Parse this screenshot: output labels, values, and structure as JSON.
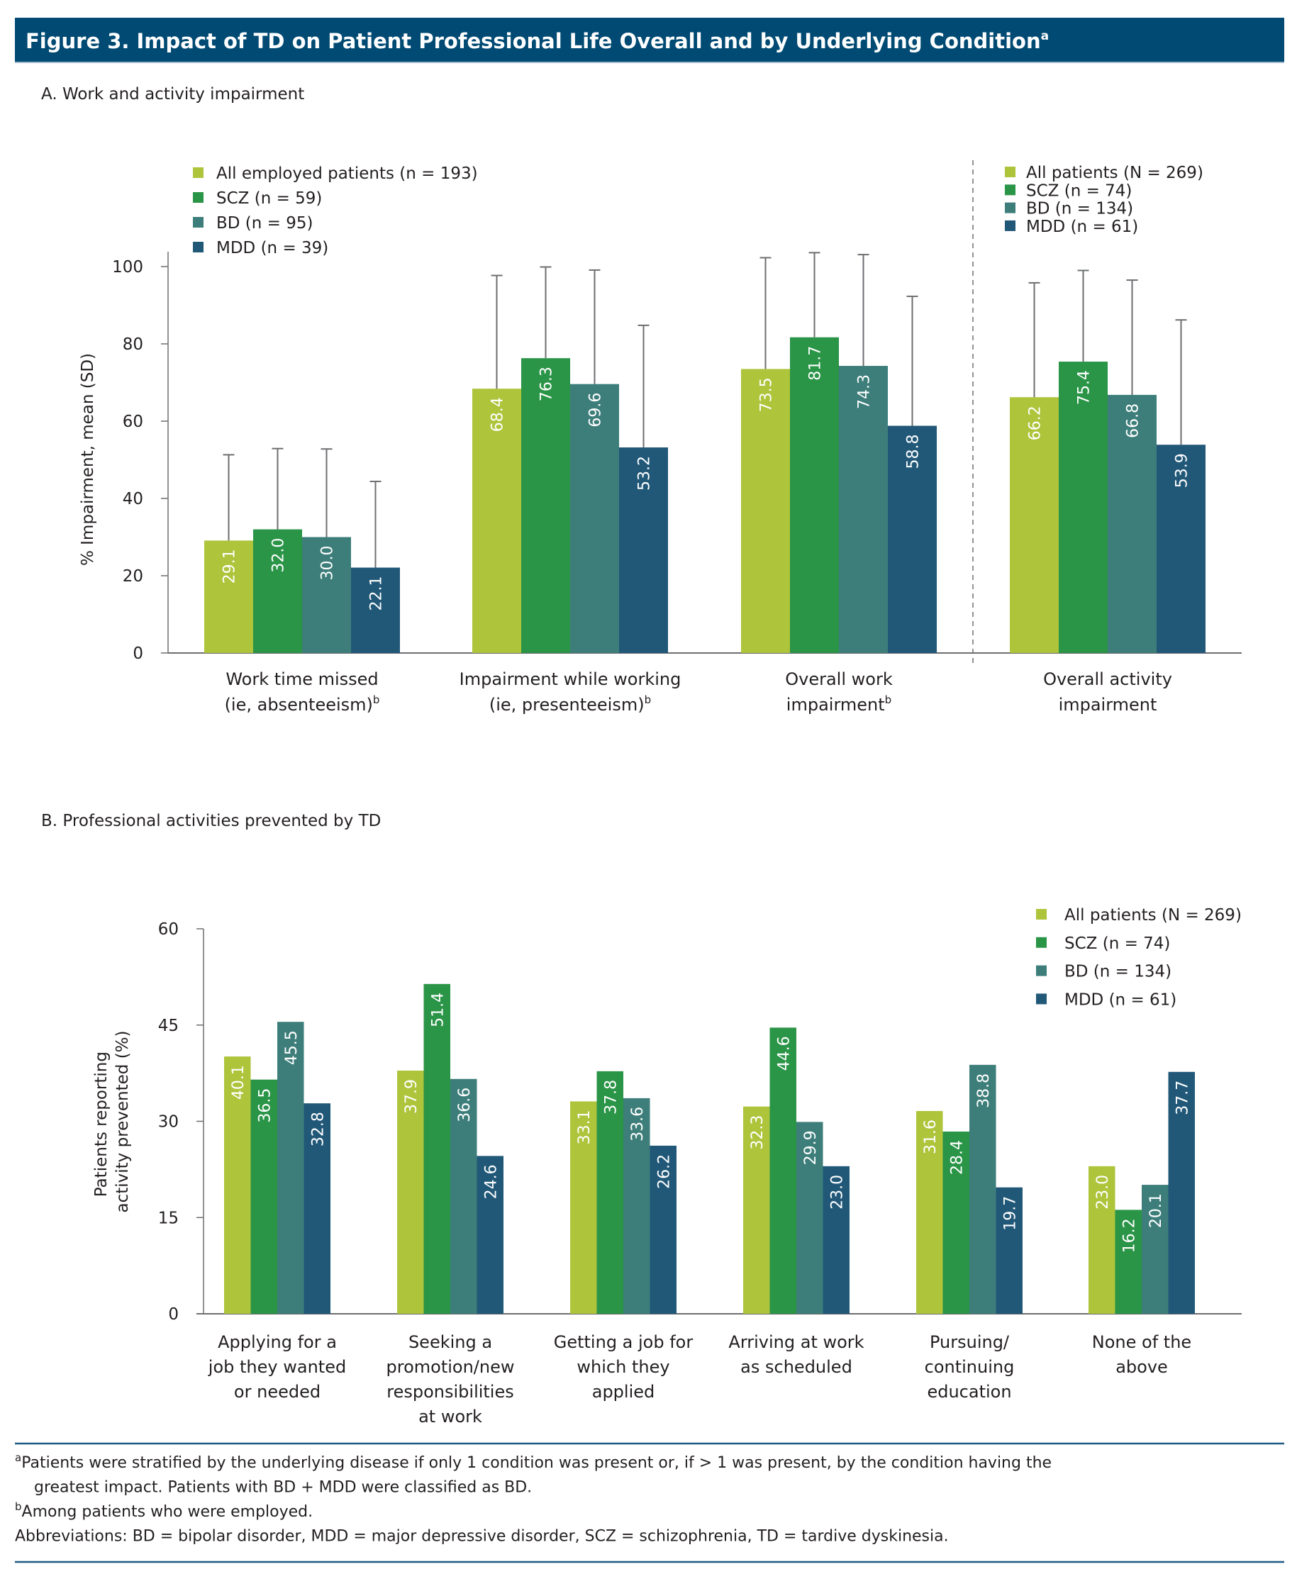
{
  "figure": {
    "title": "Figure 3. Impact of TD on Patient Professional Life Overall and by Underlying Condition",
    "title_superscript": "a",
    "colors": {
      "header_bg": "#004a73",
      "all": "#adc43b",
      "scz": "#2a9447",
      "bd": "#3d7e7a",
      "mdd": "#215878",
      "axis": "#6d6e71",
      "rule": "#1f5a84"
    }
  },
  "chart_data": [
    {
      "type": "bar",
      "title": "A. Work and activity impairment",
      "xlabel": "",
      "ylabel": "% Impairment, mean (SD)",
      "ylim": [
        0,
        100
      ],
      "yticks": [
        0,
        20,
        40,
        60,
        80,
        100
      ],
      "grid": false,
      "error_bars": "SD (upper only)",
      "categories": [
        {
          "lines": [
            "Work time missed",
            "(ie, absenteeism)"
          ],
          "sup": "b"
        },
        {
          "lines": [
            "Impairment while working",
            "(ie, presenteeism)"
          ],
          "sup": "b"
        },
        {
          "lines": [
            "Overall work",
            "impairment"
          ],
          "sup": "b"
        },
        {
          "lines": [
            "Overall activity",
            "impairment"
          ],
          "sup": ""
        }
      ],
      "series": [
        {
          "name": "All",
          "color_key": "all",
          "values": [
            29.1,
            68.4,
            73.5,
            66.2
          ],
          "error_top": [
            51.3,
            97.7,
            102.3,
            95.8
          ]
        },
        {
          "name": "SCZ",
          "color_key": "scz",
          "values": [
            32.0,
            76.3,
            81.7,
            75.4
          ],
          "error_top": [
            52.9,
            99.9,
            103.6,
            99.0
          ]
        },
        {
          "name": "BD",
          "color_key": "bd",
          "values": [
            30.0,
            69.6,
            74.3,
            66.8
          ],
          "error_top": [
            52.8,
            99.1,
            103.1,
            96.5
          ]
        },
        {
          "name": "MDD",
          "color_key": "mdd",
          "values": [
            22.1,
            53.2,
            58.8,
            53.9
          ],
          "error_top": [
            44.4,
            84.8,
            92.3,
            86.2
          ]
        }
      ],
      "legends": [
        {
          "placement": "top-left",
          "items": [
            "All employed patients (n = 193)",
            "SCZ (n = 59)",
            "BD (n = 95)",
            "MDD (n = 39)"
          ]
        },
        {
          "placement": "top-right",
          "items": [
            "All patients (N = 269)",
            "SCZ (n = 74)",
            "BD (n = 134)",
            "MDD (n = 61)"
          ]
        }
      ],
      "divider": "dashed line between 'Overall work impairment' and 'Overall activity impairment'"
    },
    {
      "type": "bar",
      "title": "B. Professional activities prevented by TD",
      "xlabel": "",
      "ylabel": [
        "Patients reporting",
        "activity prevented (%)"
      ],
      "ylim": [
        0,
        60
      ],
      "yticks": [
        0,
        15,
        30,
        45,
        60
      ],
      "grid": false,
      "categories": [
        {
          "lines": [
            "Applying for a",
            "job they wanted",
            "or needed"
          ]
        },
        {
          "lines": [
            "Seeking a",
            "promotion/new",
            "responsibilities",
            "at work"
          ]
        },
        {
          "lines": [
            "Getting a job for",
            "which they",
            "applied"
          ]
        },
        {
          "lines": [
            "Arriving at work",
            "as scheduled"
          ]
        },
        {
          "lines": [
            "Pursuing/",
            "continuing",
            "education"
          ]
        },
        {
          "lines": [
            "None of the",
            "above"
          ]
        }
      ],
      "series": [
        {
          "name": "All patients (N = 269)",
          "color_key": "all",
          "values": [
            40.1,
            37.9,
            33.1,
            32.3,
            31.6,
            23.0
          ]
        },
        {
          "name": "SCZ (n = 74)",
          "color_key": "scz",
          "values": [
            36.5,
            51.4,
            37.8,
            44.6,
            28.4,
            16.2
          ]
        },
        {
          "name": "BD (n = 134)",
          "color_key": "bd",
          "values": [
            45.5,
            36.6,
            33.6,
            29.9,
            38.8,
            20.1
          ]
        },
        {
          "name": "MDD (n = 61)",
          "color_key": "mdd",
          "values": [
            32.8,
            24.6,
            26.2,
            23.0,
            19.7,
            37.7
          ]
        }
      ],
      "legend": {
        "placement": "top-right",
        "items": [
          "All patients (N = 269)",
          "SCZ (n = 74)",
          "BD (n = 134)",
          "MDD (n = 61)"
        ]
      }
    }
  ],
  "footnotes": [
    {
      "marker": "a",
      "lines": [
        "Patients were stratified by the underlying disease if only 1 condition was present or, if > 1 was present, by the condition having the",
        "greatest impact. Patients with BD + MDD were classified as BD."
      ]
    },
    {
      "marker": "b",
      "lines": [
        "Among patients who were employed."
      ]
    },
    {
      "marker": "",
      "lines": [
        "Abbreviations: BD = bipolar disorder, MDD = major depressive disorder, SCZ = schizophrenia, TD = tardive dyskinesia."
      ]
    }
  ]
}
